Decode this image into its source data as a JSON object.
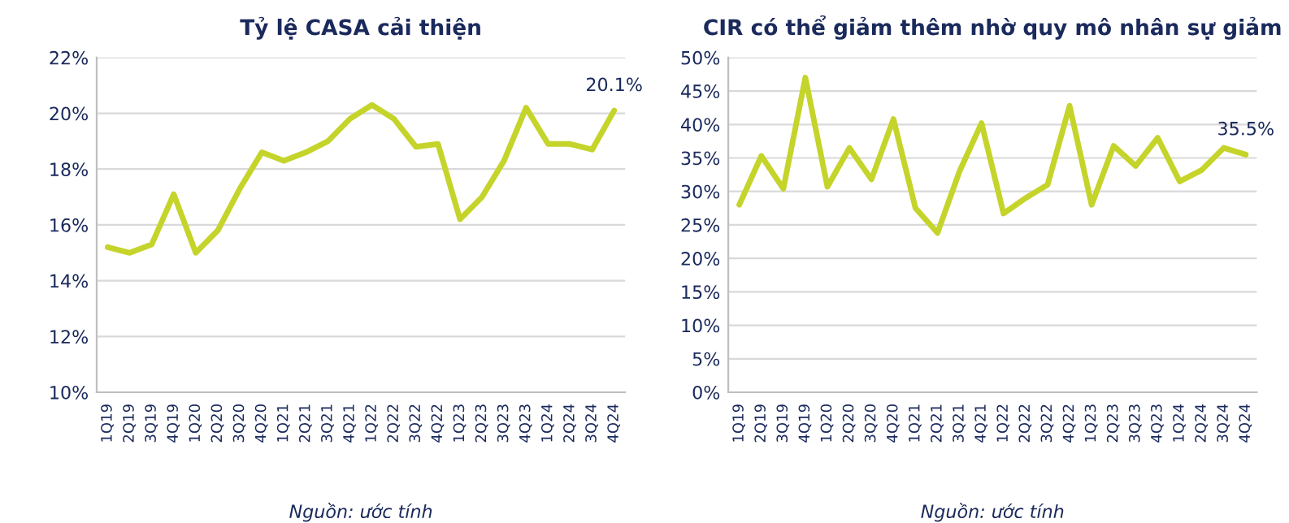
{
  "chart_data": [
    {
      "type": "line",
      "title": "Tỷ lệ CASA cải thiện",
      "categories": [
        "1Q19",
        "2Q19",
        "3Q19",
        "4Q19",
        "1Q20",
        "2Q20",
        "3Q20",
        "4Q20",
        "1Q21",
        "2Q21",
        "3Q21",
        "4Q21",
        "1Q22",
        "2Q22",
        "3Q22",
        "4Q22",
        "1Q23",
        "2Q23",
        "3Q23",
        "4Q23",
        "1Q24",
        "2Q24",
        "3Q24",
        "4Q24"
      ],
      "series": [
        {
          "color": "#c5d42a",
          "values": [
            15.2,
            15.0,
            15.3,
            17.1,
            15.0,
            15.8,
            17.3,
            18.6,
            18.3,
            18.6,
            19.0,
            19.8,
            20.3,
            19.8,
            18.8,
            18.9,
            16.2,
            17.0,
            18.3,
            20.2,
            18.9,
            18.9,
            18.7,
            20.1
          ],
          "value_labels": [
            null,
            null,
            null,
            null,
            null,
            null,
            null,
            null,
            null,
            null,
            null,
            null,
            null,
            null,
            null,
            null,
            null,
            null,
            null,
            null,
            null,
            null,
            null,
            "20.1%"
          ]
        }
      ],
      "ylim": [
        10,
        22
      ],
      "yticks": [
        {
          "value": 10,
          "label": "10%"
        },
        {
          "value": 12,
          "label": "12%"
        },
        {
          "value": 14,
          "label": "14%"
        },
        {
          "value": 16,
          "label": "16%"
        },
        {
          "value": 18,
          "label": "18%"
        },
        {
          "value": 20,
          "label": "20%"
        },
        {
          "value": 22,
          "label": "22%"
        }
      ],
      "grid": "y",
      "legend": false,
      "marker": "none",
      "line_style": "solid",
      "annotations": [
        "Nguồn: ước tính"
      ]
    },
    {
      "type": "line",
      "title": "CIR có thể giảm thêm nhờ quy mô nhân sự giảm",
      "categories": [
        "1Q19",
        "2Q19",
        "3Q19",
        "4Q19",
        "1Q20",
        "2Q20",
        "3Q20",
        "4Q20",
        "1Q21",
        "2Q21",
        "3Q21",
        "4Q21",
        "1Q22",
        "2Q22",
        "3Q22",
        "4Q22",
        "1Q23",
        "2Q23",
        "3Q23",
        "4Q23",
        "1Q24",
        "2Q24",
        "3Q24",
        "4Q24"
      ],
      "series": [
        {
          "color": "#c5d42a",
          "values": [
            28,
            35.3,
            30.4,
            47,
            30.7,
            36.5,
            31.8,
            40.8,
            27.5,
            23.8,
            33,
            40.2,
            26.7,
            29,
            31,
            42.8,
            28,
            36.8,
            33.8,
            38,
            31.5,
            33.2,
            36.5,
            35.5
          ],
          "value_labels": [
            null,
            null,
            null,
            null,
            null,
            null,
            null,
            null,
            null,
            null,
            null,
            null,
            null,
            null,
            null,
            null,
            null,
            null,
            null,
            null,
            null,
            null,
            null,
            "35.5%"
          ]
        }
      ],
      "ylim": [
        0,
        50
      ],
      "yticks": [
        {
          "value": 0,
          "label": "0%"
        },
        {
          "value": 5,
          "label": "5%"
        },
        {
          "value": 10,
          "label": "10%"
        },
        {
          "value": 15,
          "label": "15%"
        },
        {
          "value": 20,
          "label": "20%"
        },
        {
          "value": 25,
          "label": "25%"
        },
        {
          "value": 30,
          "label": "30%"
        },
        {
          "value": 35,
          "label": "35%"
        },
        {
          "value": 40,
          "label": "40%"
        },
        {
          "value": 45,
          "label": "45%"
        },
        {
          "value": 50,
          "label": "50%"
        }
      ],
      "grid": "y",
      "legend": false,
      "marker": "none",
      "line_style": "solid",
      "annotations": [
        "Nguồn: ước tính"
      ]
    }
  ]
}
